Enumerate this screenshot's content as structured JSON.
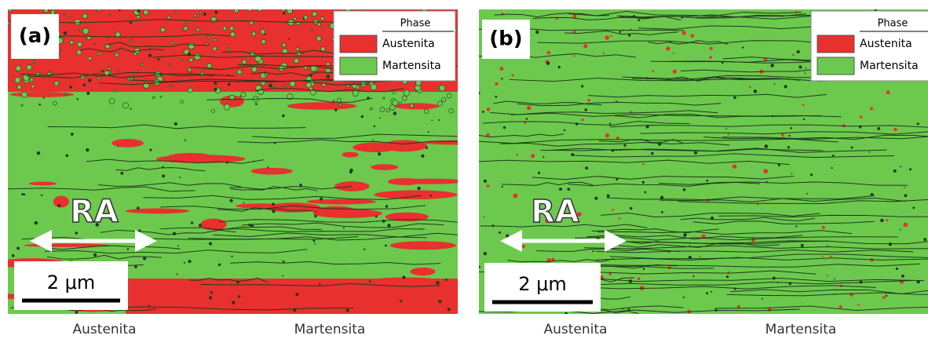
{
  "panels": [
    {
      "label": "(a)",
      "legend": {
        "title": "Phase",
        "items": [
          "Austenita",
          "Martensita"
        ]
      },
      "direction": "RA",
      "scale_bar": "2 μm",
      "caption": [
        "Austenita",
        "Martensita"
      ]
    },
    {
      "label": "(b)",
      "legend": {
        "title": "Phase",
        "items": [
          "Austenita",
          "Martensita"
        ]
      },
      "direction": "RA",
      "scale_bar": "2 μm",
      "caption": [
        "Austenita",
        "Martensita"
      ]
    }
  ]
}
